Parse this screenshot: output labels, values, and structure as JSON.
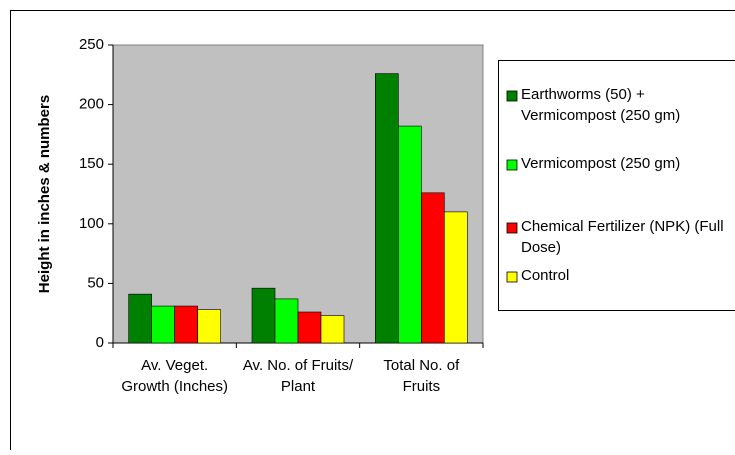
{
  "chart_data": {
    "type": "bar",
    "y_axis_label": "Height in inches & numbers",
    "categories": [
      "Av. Veget. Growth (Inches)",
      "Av. No. of Fruits/ Plant",
      "Total No. of Fruits"
    ],
    "series": [
      {
        "name": "Earthworms (50) + Vermicompost (250 gm)",
        "color": "#008000",
        "values": [
          41,
          46,
          226
        ]
      },
      {
        "name": "Vermicompost (250 gm)",
        "color": "#00ff00",
        "values": [
          31,
          37,
          182
        ]
      },
      {
        "name": "Chemical Fertilizer (NPK) (Full Dose)",
        "color": "#ff0000",
        "values": [
          31,
          26,
          126
        ]
      },
      {
        "name": "Control",
        "color": "#ffff00",
        "values": [
          28,
          23,
          110
        ]
      }
    ],
    "ylim": [
      0,
      250
    ],
    "yticks": [
      0,
      50,
      100,
      150,
      200,
      250
    ],
    "grid": false
  }
}
